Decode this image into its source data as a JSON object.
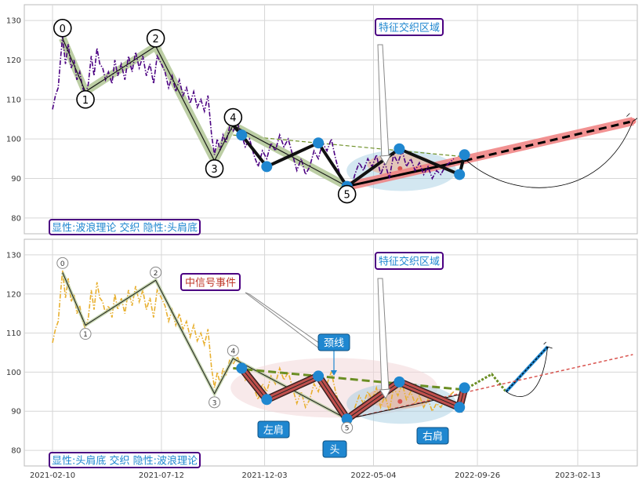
{
  "chart_data": [
    {
      "type": "line",
      "panel": "top",
      "ylim": [
        76,
        134
      ],
      "y_ticks": [
        "80",
        "90",
        "100",
        "110",
        "120",
        "130"
      ],
      "grid": true,
      "colors": {
        "price": "#4b0082",
        "wave_band": "#b5c99a",
        "trend": "#000000",
        "target_band": "#f08080",
        "neckline": "#6b8e23",
        "nodes": "#1f87d0"
      },
      "price_series": [
        [
          "2021-02-10",
          107.5
        ],
        [
          "2021-02-14",
          111
        ],
        [
          "2021-02-18",
          113
        ],
        [
          "2021-02-21",
          120
        ],
        [
          "2021-02-24",
          126
        ],
        [
          "2021-02-28",
          119
        ],
        [
          "2021-03-04",
          124
        ],
        [
          "2021-03-08",
          118
        ],
        [
          "2021-03-12",
          120
        ],
        [
          "2021-03-16",
          115
        ],
        [
          "2021-03-20",
          117
        ],
        [
          "2021-03-24",
          113
        ],
        [
          "2021-03-28",
          111
        ],
        [
          "2021-04-01",
          114
        ],
        [
          "2021-04-05",
          121
        ],
        [
          "2021-04-09",
          116
        ],
        [
          "2021-04-13",
          123
        ],
        [
          "2021-04-17",
          119
        ],
        [
          "2021-04-21",
          118
        ],
        [
          "2021-04-25",
          115
        ],
        [
          "2021-04-29",
          117
        ],
        [
          "2021-05-04",
          114
        ],
        [
          "2021-05-08",
          120
        ],
        [
          "2021-05-12",
          116
        ],
        [
          "2021-05-17",
          119
        ],
        [
          "2021-05-22",
          115
        ],
        [
          "2021-05-27",
          121
        ],
        [
          "2021-06-01",
          117
        ],
        [
          "2021-06-06",
          122
        ],
        [
          "2021-06-11",
          118
        ],
        [
          "2021-06-16",
          121
        ],
        [
          "2021-06-21",
          116
        ],
        [
          "2021-06-26",
          119
        ],
        [
          "2021-07-01",
          114
        ],
        [
          "2021-07-06",
          121
        ],
        [
          "2021-07-12",
          119
        ],
        [
          "2021-07-17",
          117
        ],
        [
          "2021-07-22",
          113
        ],
        [
          "2021-07-27",
          116
        ],
        [
          "2021-08-01",
          112
        ],
        [
          "2021-08-06",
          115
        ],
        [
          "2021-08-11",
          111
        ],
        [
          "2021-08-16",
          113
        ],
        [
          "2021-08-21",
          109
        ],
        [
          "2021-08-26",
          112
        ],
        [
          "2021-08-31",
          108
        ],
        [
          "2021-09-05",
          110
        ],
        [
          "2021-09-10",
          107
        ],
        [
          "2021-09-15",
          111
        ],
        [
          "2021-09-20",
          101
        ],
        [
          "2021-09-24",
          96
        ],
        [
          "2021-09-28",
          100
        ],
        [
          "2021-10-02",
          97
        ],
        [
          "2021-10-06",
          101
        ],
        [
          "2021-10-10",
          99
        ],
        [
          "2021-10-15",
          103
        ],
        [
          "2021-10-20",
          102
        ],
        [
          "2021-10-26",
          104
        ],
        [
          "2021-11-01",
          101
        ],
        [
          "2021-11-06",
          98
        ],
        [
          "2021-11-12",
          100
        ],
        [
          "2021-11-18",
          96
        ],
        [
          "2021-11-24",
          93
        ],
        [
          "2021-11-30",
          97
        ],
        [
          "2021-12-06",
          95
        ],
        [
          "2021-12-12",
          99
        ],
        [
          "2021-12-18",
          97
        ],
        [
          "2021-12-24",
          101
        ],
        [
          "2021-12-30",
          98
        ],
        [
          "2022-01-05",
          100
        ],
        [
          "2022-01-11",
          96
        ],
        [
          "2022-01-17",
          92
        ],
        [
          "2022-01-23",
          95
        ],
        [
          "2022-01-29",
          91
        ],
        [
          "2022-02-04",
          93
        ],
        [
          "2022-02-10",
          97
        ],
        [
          "2022-02-16",
          95
        ],
        [
          "2022-02-22",
          99
        ],
        [
          "2022-02-28",
          97
        ],
        [
          "2022-03-06",
          100
        ],
        [
          "2022-03-12",
          95
        ],
        [
          "2022-03-18",
          91
        ],
        [
          "2022-03-24",
          88
        ],
        [
          "2022-03-28",
          86
        ],
        [
          "2022-04-02",
          87
        ],
        [
          "2022-04-08",
          91
        ],
        [
          "2022-04-14",
          94
        ],
        [
          "2022-04-20",
          92
        ],
        [
          "2022-04-26",
          95
        ],
        [
          "2022-05-02",
          93
        ],
        [
          "2022-05-08",
          96
        ],
        [
          "2022-05-14",
          91
        ],
        [
          "2022-05-20",
          94
        ],
        [
          "2022-05-26",
          90
        ],
        [
          "2022-06-01",
          96
        ],
        [
          "2022-06-07",
          94
        ],
        [
          "2022-06-13",
          97
        ],
        [
          "2022-06-19",
          93
        ],
        [
          "2022-06-25",
          95
        ],
        [
          "2022-07-01",
          92
        ],
        [
          "2022-07-07",
          94
        ],
        [
          "2022-07-13",
          91
        ],
        [
          "2022-07-19",
          93
        ],
        [
          "2022-07-25",
          90
        ],
        [
          "2022-07-31",
          92
        ],
        [
          "2022-08-06",
          91
        ],
        [
          "2022-08-12",
          93
        ],
        [
          "2022-08-18",
          94
        ],
        [
          "2022-08-24",
          95
        ]
      ],
      "wave_points": [
        {
          "label": "0",
          "x": "2021-02-24",
          "y": 125.5
        },
        {
          "label": "1",
          "x": "2021-03-28",
          "y": 112
        },
        {
          "label": "2",
          "x": "2021-07-04",
          "y": 123.5
        },
        {
          "label": "3",
          "x": "2021-09-24",
          "y": 94.5
        },
        {
          "label": "4",
          "x": "2021-10-20",
          "y": 103.5
        },
        {
          "label": "5",
          "x": "2022-03-28",
          "y": 88
        }
      ],
      "hs_nodes": [
        {
          "x": "2021-11-01",
          "y": 101
        },
        {
          "x": "2021-12-06",
          "y": 93
        },
        {
          "x": "2022-02-16",
          "y": 99
        },
        {
          "x": "2022-03-28",
          "y": 88
        },
        {
          "x": "2022-06-09",
          "y": 97.5
        },
        {
          "x": "2022-09-01",
          "y": 91
        },
        {
          "x": "2022-09-08",
          "y": 96
        }
      ],
      "neckline": {
        "from": {
          "x": "2021-10-20",
          "y": 101
        },
        "to": {
          "x": "2022-09-08",
          "y": 95.5
        }
      },
      "target_trend": {
        "from": {
          "x": "2022-03-28",
          "y": 88
        },
        "to": {
          "x": "2023-05-01",
          "y": 104.5
        }
      },
      "annotations": [
        {
          "text": "特征交织区域",
          "color": "#1f87d0",
          "border": "#4b0082"
        },
        {
          "text": "显性:波浪理论 交织 隐性:头肩底",
          "color": "#1f87d0",
          "border": "#4b0082"
        }
      ]
    },
    {
      "type": "line",
      "panel": "bottom",
      "ylim": [
        76,
        134
      ],
      "y_ticks": [
        "80",
        "90",
        "100",
        "110",
        "120",
        "130"
      ],
      "x_ticks": [
        "2021-02-10",
        "2021-07-12",
        "2021-12-03",
        "2022-05-04",
        "2022-09-26",
        "2023-02-13"
      ],
      "grid": true,
      "colors": {
        "price": "#e8b030",
        "head_shoulders": "#c0504d",
        "neckline": "#6b8e23",
        "projection": "#1f87d0",
        "trend": "#d9544f"
      },
      "wave_labels": [
        "0",
        "1",
        "2",
        "3",
        "4",
        "5"
      ],
      "hs_labels": [
        {
          "key": "neckline",
          "text": "颈线"
        },
        {
          "key": "left_shoulder",
          "text": "左肩"
        },
        {
          "key": "head",
          "text": "头"
        },
        {
          "key": "right_shoulder",
          "text": "右肩"
        }
      ],
      "event_label": "中信号事件",
      "annotations": [
        {
          "text": "特征交织区域",
          "color": "#1f87d0",
          "border": "#4b0082"
        },
        {
          "text": "显性:头肩底 交织 隐性:波浪理论",
          "color": "#1f87d0",
          "border": "#4b0082"
        }
      ]
    }
  ]
}
